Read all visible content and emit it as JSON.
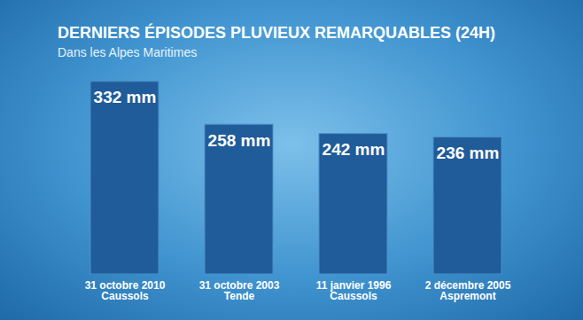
{
  "chart_data": {
    "type": "bar",
    "title": "DERNIERS ÉPISODES PLUVIEUX REMARQUABLES (24H)",
    "subtitle": "Dans les Alpes Maritimes",
    "categories": [
      "31 octobre 2010\nCaussols",
      "31 octobre 2003\nTende",
      "11 janvier 1996\nCaussols",
      "2 décembre 2005\nAspremont"
    ],
    "values": [
      332,
      258,
      242,
      236
    ],
    "value_labels": [
      "332 mm",
      "258 mm",
      "242 mm",
      "236 mm"
    ],
    "data_labels": true,
    "color": "#1f5c99",
    "ylim": [
      0,
      350
    ],
    "tick_labels": "x",
    "grid": false
  }
}
